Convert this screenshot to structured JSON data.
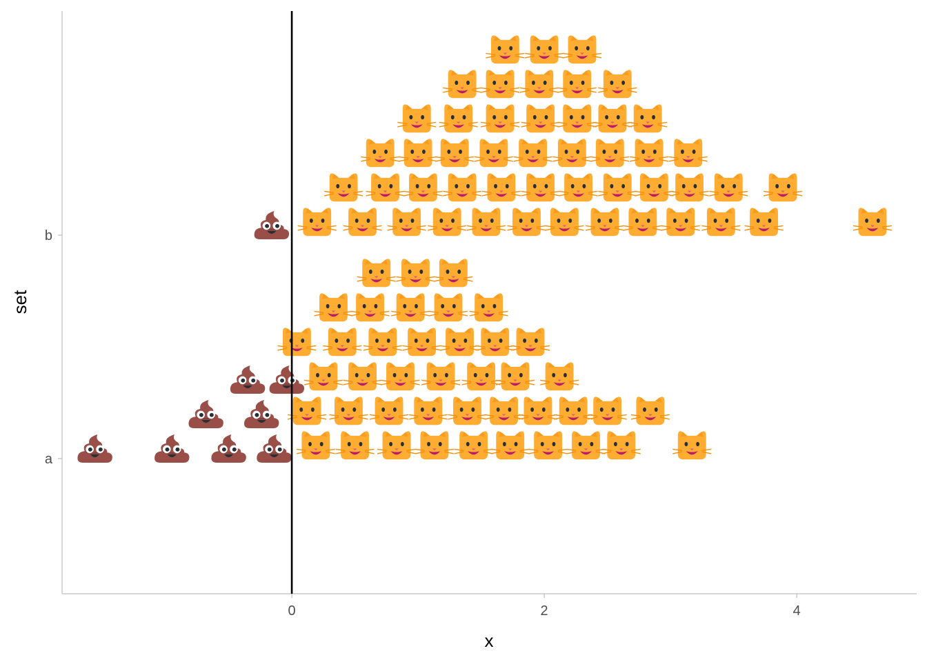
{
  "chart_data": {
    "type": "scatter",
    "subtype": "emoji-dotplot",
    "title": "",
    "xlabel": "x",
    "ylabel": "set",
    "xlim": [
      -1.82,
      4.95
    ],
    "x_ticks": [
      {
        "value": 0,
        "label": "0"
      },
      {
        "value": 2,
        "label": "2"
      },
      {
        "value": 4,
        "label": "4"
      }
    ],
    "y_categories": [
      "a",
      "b"
    ],
    "grid": false,
    "reference_line": {
      "x": 0,
      "color": "#000000"
    },
    "legend": "none",
    "emoji": {
      "negative": "poop-emoji",
      "positive": "cat-emoji"
    },
    "colors": {
      "cat_face": "#ffac33",
      "cat_mouth": "#bb1a6a",
      "cat_whiskers": "#f4900c",
      "poop": "#9a4e48",
      "axis": "#bdbdbd",
      "reference_line": "#000000"
    },
    "series": [
      {
        "category": "a",
        "rows": [
          [
            -1.56,
            -0.95,
            -0.5,
            -0.14,
            0.19,
            0.5,
            0.83,
            1.13,
            1.44,
            1.73,
            2.03,
            2.33,
            2.61,
            3.17
          ],
          [
            -0.68,
            -0.24,
            0.12,
            0.45,
            0.77,
            1.08,
            1.39,
            1.68,
            1.95,
            2.23,
            2.5,
            2.84
          ],
          [
            -0.35,
            -0.04,
            0.25,
            0.56,
            0.86,
            1.18,
            1.5,
            1.77,
            2.12
          ],
          [
            0.04,
            0.4,
            0.72,
            1.03,
            1.33,
            1.61,
            1.89
          ],
          [
            0.33,
            0.62,
            0.94,
            1.24,
            1.56
          ],
          [
            0.67,
            0.98,
            1.28
          ]
        ]
      },
      {
        "category": "b",
        "rows": [
          [
            -0.16,
            0.2,
            0.56,
            0.91,
            1.23,
            1.54,
            1.86,
            2.16,
            2.48,
            2.78,
            3.08,
            3.4,
            3.74,
            4.6
          ],
          [
            0.41,
            0.74,
            1.04,
            1.35,
            1.66,
            1.97,
            2.27,
            2.58,
            2.87,
            3.15,
            3.46,
            3.89
          ],
          [
            0.7,
            1.0,
            1.29,
            1.6,
            1.91,
            2.22,
            2.52,
            2.83,
            3.14
          ],
          [
            0.99,
            1.32,
            1.65,
            1.97,
            2.26,
            2.54,
            2.82
          ],
          [
            1.35,
            1.65,
            1.96,
            2.26,
            2.58
          ],
          [
            1.69,
            2.0,
            2.3
          ]
        ]
      }
    ]
  }
}
